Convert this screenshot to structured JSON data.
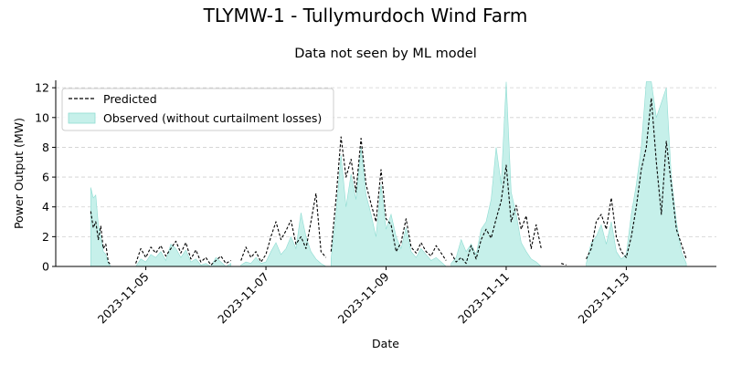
{
  "chart_data": {
    "type": "line",
    "title": "TLYMW-1 - Tullymurdoch Wind Farm",
    "subtitle": "Data not seen by ML model",
    "xlabel": "Date",
    "ylabel": "Power Output (MW)",
    "xlim": [
      "2023-11-03 12:00",
      "2023-11-14 12:00"
    ],
    "ylim": [
      0,
      12.5
    ],
    "x_ticks": [
      "2023-11-05",
      "2023-11-07",
      "2023-11-09",
      "2023-11-11",
      "2023-11-13"
    ],
    "y_ticks": [
      0,
      2,
      4,
      6,
      8,
      10,
      12
    ],
    "grid": "horizontal dashed",
    "legend_position": "top-left",
    "colors": {
      "predicted": "#000000",
      "observed_fill": "#c6f0ea",
      "observed_edge": "#8fdcd2",
      "grid": "#d0d0d0"
    },
    "series": [
      {
        "name": "Predicted",
        "style": "dashed-line",
        "segments": [
          {
            "x": [
              "2023-11-04 02:00",
              "2023-11-04 03:00",
              "2023-11-04 04:00",
              "2023-11-04 05:00",
              "2023-11-04 06:00",
              "2023-11-04 07:00",
              "2023-11-04 08:00",
              "2023-11-04 09:00",
              "2023-11-04 10:00"
            ],
            "y": [
              3.7,
              2.6,
              3.0,
              1.8,
              2.7,
              1.2,
              1.5,
              0.3,
              0.1
            ]
          },
          {
            "x": [
              "2023-11-04 20:00",
              "2023-11-04 22:00",
              "2023-11-05 00:00",
              "2023-11-05 02:00",
              "2023-11-05 04:00",
              "2023-11-05 06:00",
              "2023-11-05 08:00",
              "2023-11-05 10:00",
              "2023-11-05 12:00",
              "2023-11-05 14:00",
              "2023-11-05 16:00",
              "2023-11-05 18:00",
              "2023-11-05 20:00",
              "2023-11-05 22:00",
              "2023-11-06 00:00",
              "2023-11-06 02:00",
              "2023-11-06 04:00",
              "2023-11-06 06:00",
              "2023-11-06 08:00",
              "2023-11-06 10:00"
            ],
            "y": [
              0.2,
              1.2,
              0.6,
              1.3,
              0.9,
              1.4,
              0.7,
              1.2,
              1.7,
              0.9,
              1.6,
              0.5,
              1.1,
              0.3,
              0.6,
              0.1,
              0.4,
              0.7,
              0.2,
              0.4
            ]
          },
          {
            "x": [
              "2023-11-06 14:00",
              "2023-11-06 16:00",
              "2023-11-06 18:00",
              "2023-11-06 20:00",
              "2023-11-06 22:00",
              "2023-11-07 00:00",
              "2023-11-07 02:00",
              "2023-11-07 04:00",
              "2023-11-07 06:00",
              "2023-11-07 08:00",
              "2023-11-07 10:00",
              "2023-11-07 12:00",
              "2023-11-07 14:00",
              "2023-11-07 16:00",
              "2023-11-07 18:00",
              "2023-11-07 20:00",
              "2023-11-07 22:00",
              "2023-11-08 00:00"
            ],
            "y": [
              0.4,
              1.3,
              0.6,
              1.0,
              0.3,
              0.8,
              2.0,
              3.0,
              1.8,
              2.4,
              3.1,
              1.5,
              2.0,
              1.2,
              3.0,
              4.9,
              1.0,
              0.6
            ]
          },
          {
            "x": [
              "2023-11-08 02:00",
              "2023-11-08 04:00",
              "2023-11-08 06:00",
              "2023-11-08 08:00",
              "2023-11-08 10:00",
              "2023-11-08 12:00",
              "2023-11-08 14:00",
              "2023-11-08 16:00",
              "2023-11-08 18:00",
              "2023-11-08 20:00",
              "2023-11-08 22:00",
              "2023-11-09 00:00",
              "2023-11-09 02:00",
              "2023-11-09 04:00",
              "2023-11-09 06:00",
              "2023-11-09 08:00",
              "2023-11-09 10:00",
              "2023-11-09 12:00",
              "2023-11-09 14:00",
              "2023-11-09 16:00",
              "2023-11-09 18:00",
              "2023-11-09 20:00",
              "2023-11-09 22:00",
              "2023-11-10 00:00"
            ],
            "y": [
              1.0,
              4.5,
              8.7,
              6.0,
              7.2,
              5.0,
              8.6,
              5.5,
              4.2,
              3.0,
              6.5,
              3.2,
              2.8,
              1.0,
              1.6,
              3.2,
              1.3,
              0.9,
              1.6,
              1.0,
              0.7,
              1.4,
              0.9,
              0.4
            ]
          },
          {
            "x": [
              "2023-11-10 02:00",
              "2023-11-10 04:00",
              "2023-11-10 06:00",
              "2023-11-10 08:00",
              "2023-11-10 10:00",
              "2023-11-10 12:00",
              "2023-11-10 14:00",
              "2023-11-10 16:00",
              "2023-11-10 18:00",
              "2023-11-10 20:00",
              "2023-11-10 22:00",
              "2023-11-11 00:00",
              "2023-11-11 02:00",
              "2023-11-11 04:00",
              "2023-11-11 06:00",
              "2023-11-11 08:00",
              "2023-11-11 10:00",
              "2023-11-11 12:00",
              "2023-11-11 14:00"
            ],
            "y": [
              0.9,
              0.3,
              0.6,
              0.2,
              1.4,
              0.5,
              1.8,
              2.5,
              1.9,
              3.2,
              4.4,
              6.8,
              3.0,
              4.1,
              2.5,
              3.4,
              1.2,
              2.8,
              1.2
            ]
          },
          {
            "x": [
              "2023-11-11 22:00",
              "2023-11-12 00:00"
            ],
            "y": [
              0.2,
              0.1
            ]
          },
          {
            "x": [
              "2023-11-12 08:00",
              "2023-11-12 10:00",
              "2023-11-12 12:00",
              "2023-11-12 14:00",
              "2023-11-12 16:00",
              "2023-11-12 18:00",
              "2023-11-12 20:00",
              "2023-11-12 22:00",
              "2023-11-13 00:00",
              "2023-11-13 02:00",
              "2023-11-13 04:00",
              "2023-11-13 06:00",
              "2023-11-13 08:00",
              "2023-11-13 10:00",
              "2023-11-13 12:00",
              "2023-11-13 14:00",
              "2023-11-13 16:00",
              "2023-11-13 18:00",
              "2023-11-13 20:00",
              "2023-11-13 22:00",
              "2023-11-14 00:00"
            ],
            "y": [
              0.5,
              1.2,
              3.0,
              3.5,
              2.5,
              4.6,
              2.0,
              1.0,
              0.6,
              2.0,
              4.0,
              6.5,
              8.0,
              11.3,
              7.0,
              3.5,
              8.4,
              5.5,
              2.5,
              1.5,
              0.5
            ]
          }
        ]
      },
      {
        "name": "Observed (without curtailment losses)",
        "style": "filled-area",
        "segments": [
          {
            "x": [
              "2023-11-04 02:00",
              "2023-11-04 03:00",
              "2023-11-04 04:00",
              "2023-11-04 05:00",
              "2023-11-04 06:00",
              "2023-11-04 07:00",
              "2023-11-04 08:00",
              "2023-11-04 09:00",
              "2023-11-04 10:00"
            ],
            "y": [
              5.3,
              4.6,
              4.8,
              2.8,
              2.0,
              1.0,
              0.8,
              0.2,
              0.0
            ]
          },
          {
            "x": [
              "2023-11-04 20:00",
              "2023-11-04 22:00",
              "2023-11-05 00:00",
              "2023-11-05 02:00",
              "2023-11-05 04:00",
              "2023-11-05 06:00",
              "2023-11-05 08:00",
              "2023-11-05 10:00",
              "2023-11-05 12:00",
              "2023-11-05 14:00",
              "2023-11-05 16:00",
              "2023-11-05 18:00",
              "2023-11-05 20:00",
              "2023-11-05 22:00",
              "2023-11-06 00:00",
              "2023-11-06 02:00",
              "2023-11-06 04:00",
              "2023-11-06 06:00",
              "2023-11-06 08:00",
              "2023-11-06 10:00"
            ],
            "y": [
              0.0,
              0.5,
              0.3,
              0.8,
              0.6,
              1.0,
              0.4,
              1.5,
              1.2,
              0.6,
              1.1,
              0.3,
              0.5,
              0.1,
              0.2,
              0.0,
              0.6,
              0.3,
              0.0,
              0.2
            ]
          },
          {
            "x": [
              "2023-11-06 14:00",
              "2023-11-06 16:00",
              "2023-11-06 18:00",
              "2023-11-06 20:00",
              "2023-11-06 22:00",
              "2023-11-07 00:00",
              "2023-11-07 02:00",
              "2023-11-07 04:00",
              "2023-11-07 06:00",
              "2023-11-07 08:00",
              "2023-11-07 10:00",
              "2023-11-07 12:00",
              "2023-11-07 14:00",
              "2023-11-07 16:00",
              "2023-11-07 18:00",
              "2023-11-07 20:00",
              "2023-11-07 22:00",
              "2023-11-08 00:00"
            ],
            "y": [
              0.1,
              0.3,
              0.2,
              0.6,
              0.2,
              0.3,
              1.0,
              1.6,
              0.8,
              1.2,
              2.0,
              1.2,
              3.6,
              2.0,
              1.0,
              0.5,
              0.2,
              0.0
            ]
          },
          {
            "x": [
              "2023-11-08 02:00",
              "2023-11-08 04:00",
              "2023-11-08 06:00",
              "2023-11-08 08:00",
              "2023-11-08 10:00",
              "2023-11-08 12:00",
              "2023-11-08 14:00",
              "2023-11-08 16:00",
              "2023-11-08 18:00",
              "2023-11-08 20:00",
              "2023-11-08 22:00",
              "2023-11-09 00:00",
              "2023-11-09 02:00",
              "2023-11-09 04:00",
              "2023-11-09 06:00",
              "2023-11-09 08:00",
              "2023-11-09 10:00",
              "2023-11-09 12:00",
              "2023-11-09 14:00",
              "2023-11-09 16:00",
              "2023-11-09 18:00",
              "2023-11-09 20:00",
              "2023-11-09 22:00",
              "2023-11-10 00:00"
            ],
            "y": [
              0.5,
              3.5,
              7.5,
              4.0,
              6.2,
              4.5,
              8.0,
              4.8,
              3.5,
              2.0,
              5.5,
              2.5,
              3.5,
              2.0,
              1.2,
              2.6,
              1.0,
              0.6,
              1.2,
              0.8,
              0.4,
              0.6,
              0.3,
              0.0
            ]
          },
          {
            "x": [
              "2023-11-10 02:00",
              "2023-11-10 04:00",
              "2023-11-10 06:00",
              "2023-11-10 08:00",
              "2023-11-10 10:00",
              "2023-11-10 12:00",
              "2023-11-10 14:00",
              "2023-11-10 16:00",
              "2023-11-10 18:00",
              "2023-11-10 20:00",
              "2023-11-10 22:00",
              "2023-11-11 00:00",
              "2023-11-11 02:00",
              "2023-11-11 04:00",
              "2023-11-11 06:00",
              "2023-11-11 08:00",
              "2023-11-11 10:00",
              "2023-11-11 12:00",
              "2023-11-11 14:00"
            ],
            "y": [
              0.2,
              0.6,
              1.8,
              1.0,
              1.5,
              0.8,
              2.5,
              3.0,
              4.5,
              8.0,
              5.5,
              12.4,
              5.0,
              3.5,
              1.6,
              1.0,
              0.5,
              0.3,
              0.0
            ]
          },
          {
            "x": [
              "2023-11-12 08:00",
              "2023-11-12 10:00",
              "2023-11-12 12:00",
              "2023-11-12 14:00",
              "2023-11-12 16:00",
              "2023-11-12 18:00",
              "2023-11-12 20:00",
              "2023-11-12 22:00",
              "2023-11-13 00:00",
              "2023-11-13 02:00",
              "2023-11-13 04:00",
              "2023-11-13 06:00",
              "2023-11-13 08:00",
              "2023-11-13 10:00",
              "2023-11-13 12:00",
              "2023-11-13 14:00",
              "2023-11-13 16:00",
              "2023-11-13 18:00",
              "2023-11-13 20:00",
              "2023-11-13 22:00",
              "2023-11-14 00:00"
            ],
            "y": [
              0.2,
              1.6,
              2.0,
              2.8,
              1.5,
              3.0,
              1.0,
              0.5,
              0.8,
              3.5,
              5.5,
              8.0,
              12.4,
              12.4,
              10.0,
              11.0,
              12.0,
              6.0,
              3.0,
              1.0,
              0.2
            ]
          }
        ]
      }
    ]
  }
}
